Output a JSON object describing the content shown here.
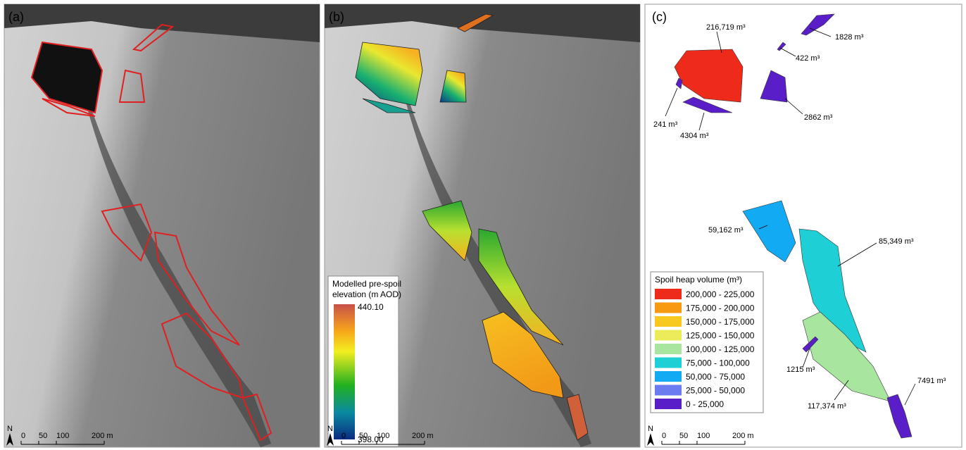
{
  "panels": [
    {
      "label": "(a)"
    },
    {
      "label": "(b)"
    },
    {
      "label": "(c)"
    }
  ],
  "elevation_legend": {
    "title_lines": [
      "Modelled pre-spoil",
      "elevation (m AOD)"
    ],
    "max": "440.10",
    "min": "398.00"
  },
  "volume_legend": {
    "title": "Spoil heap volume (m³)",
    "classes": [
      {
        "label": "200,000 - 225,000",
        "color": "#ee2a1a"
      },
      {
        "label": "175,000 - 200,000",
        "color": "#f79a12"
      },
      {
        "label": "150,000 - 175,000",
        "color": "#f7c81e"
      },
      {
        "label": "125,000 - 150,000",
        "color": "#ecec5a"
      },
      {
        "label": "100,000 - 125,000",
        "color": "#a8e6a0"
      },
      {
        "label": "75,000 - 100,000",
        "color": "#1ed0d6"
      },
      {
        "label": "50,000 - 75,000",
        "color": "#12aaf2"
      },
      {
        "label": "25,000 - 50,000",
        "color": "#6a7cf0"
      },
      {
        "label": "0 - 25,000",
        "color": "#5a1ec8"
      }
    ]
  },
  "heap_labels": [
    "216,719 m³",
    "1828 m³",
    "422 m³",
    "241 m³",
    "2862 m³",
    "4304 m³",
    "59,162 m³",
    "85,349 m³",
    "1215 m³",
    "7491 m³",
    "117,374 m³"
  ],
  "scale_bar": {
    "north": "N",
    "ticks": [
      "0",
      "50",
      "100",
      "200 m"
    ]
  }
}
